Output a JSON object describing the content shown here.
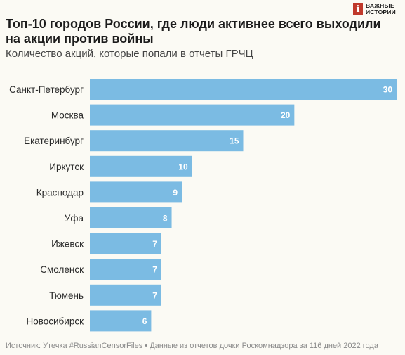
{
  "brand": {
    "mark": "i",
    "line1": "ВАЖНЫЕ",
    "line2": "ИСТОРИИ"
  },
  "colors": {
    "bar": "#7bbbe3",
    "bar_label": "#ffffff",
    "background": "#fbfaf4"
  },
  "chart_data": {
    "type": "bar",
    "orientation": "horizontal",
    "title": "Топ-10 городов России, где люди активнее всего выходили на акции против войны",
    "subtitle": "Количество акций, которые попали в отчеты ГРЧЦ",
    "categories": [
      "Санкт-Петербург",
      "Москва",
      "Екатеринбург",
      "Иркутск",
      "Краснодар",
      "Уфа",
      "Ижевск",
      "Смоленск",
      "Тюмень",
      "Новосибирск"
    ],
    "values": [
      30,
      20,
      15,
      10,
      9,
      8,
      7,
      7,
      7,
      6
    ],
    "xlim": [
      0,
      30
    ],
    "grid": false,
    "data_labels": true
  },
  "source": {
    "prefix": "Источник: Утечка ",
    "hashtag": "#RussianCensorFiles",
    "suffix": " • Данные из отчетов дочки Роскомнадзора за 116 дней 2022 года"
  }
}
